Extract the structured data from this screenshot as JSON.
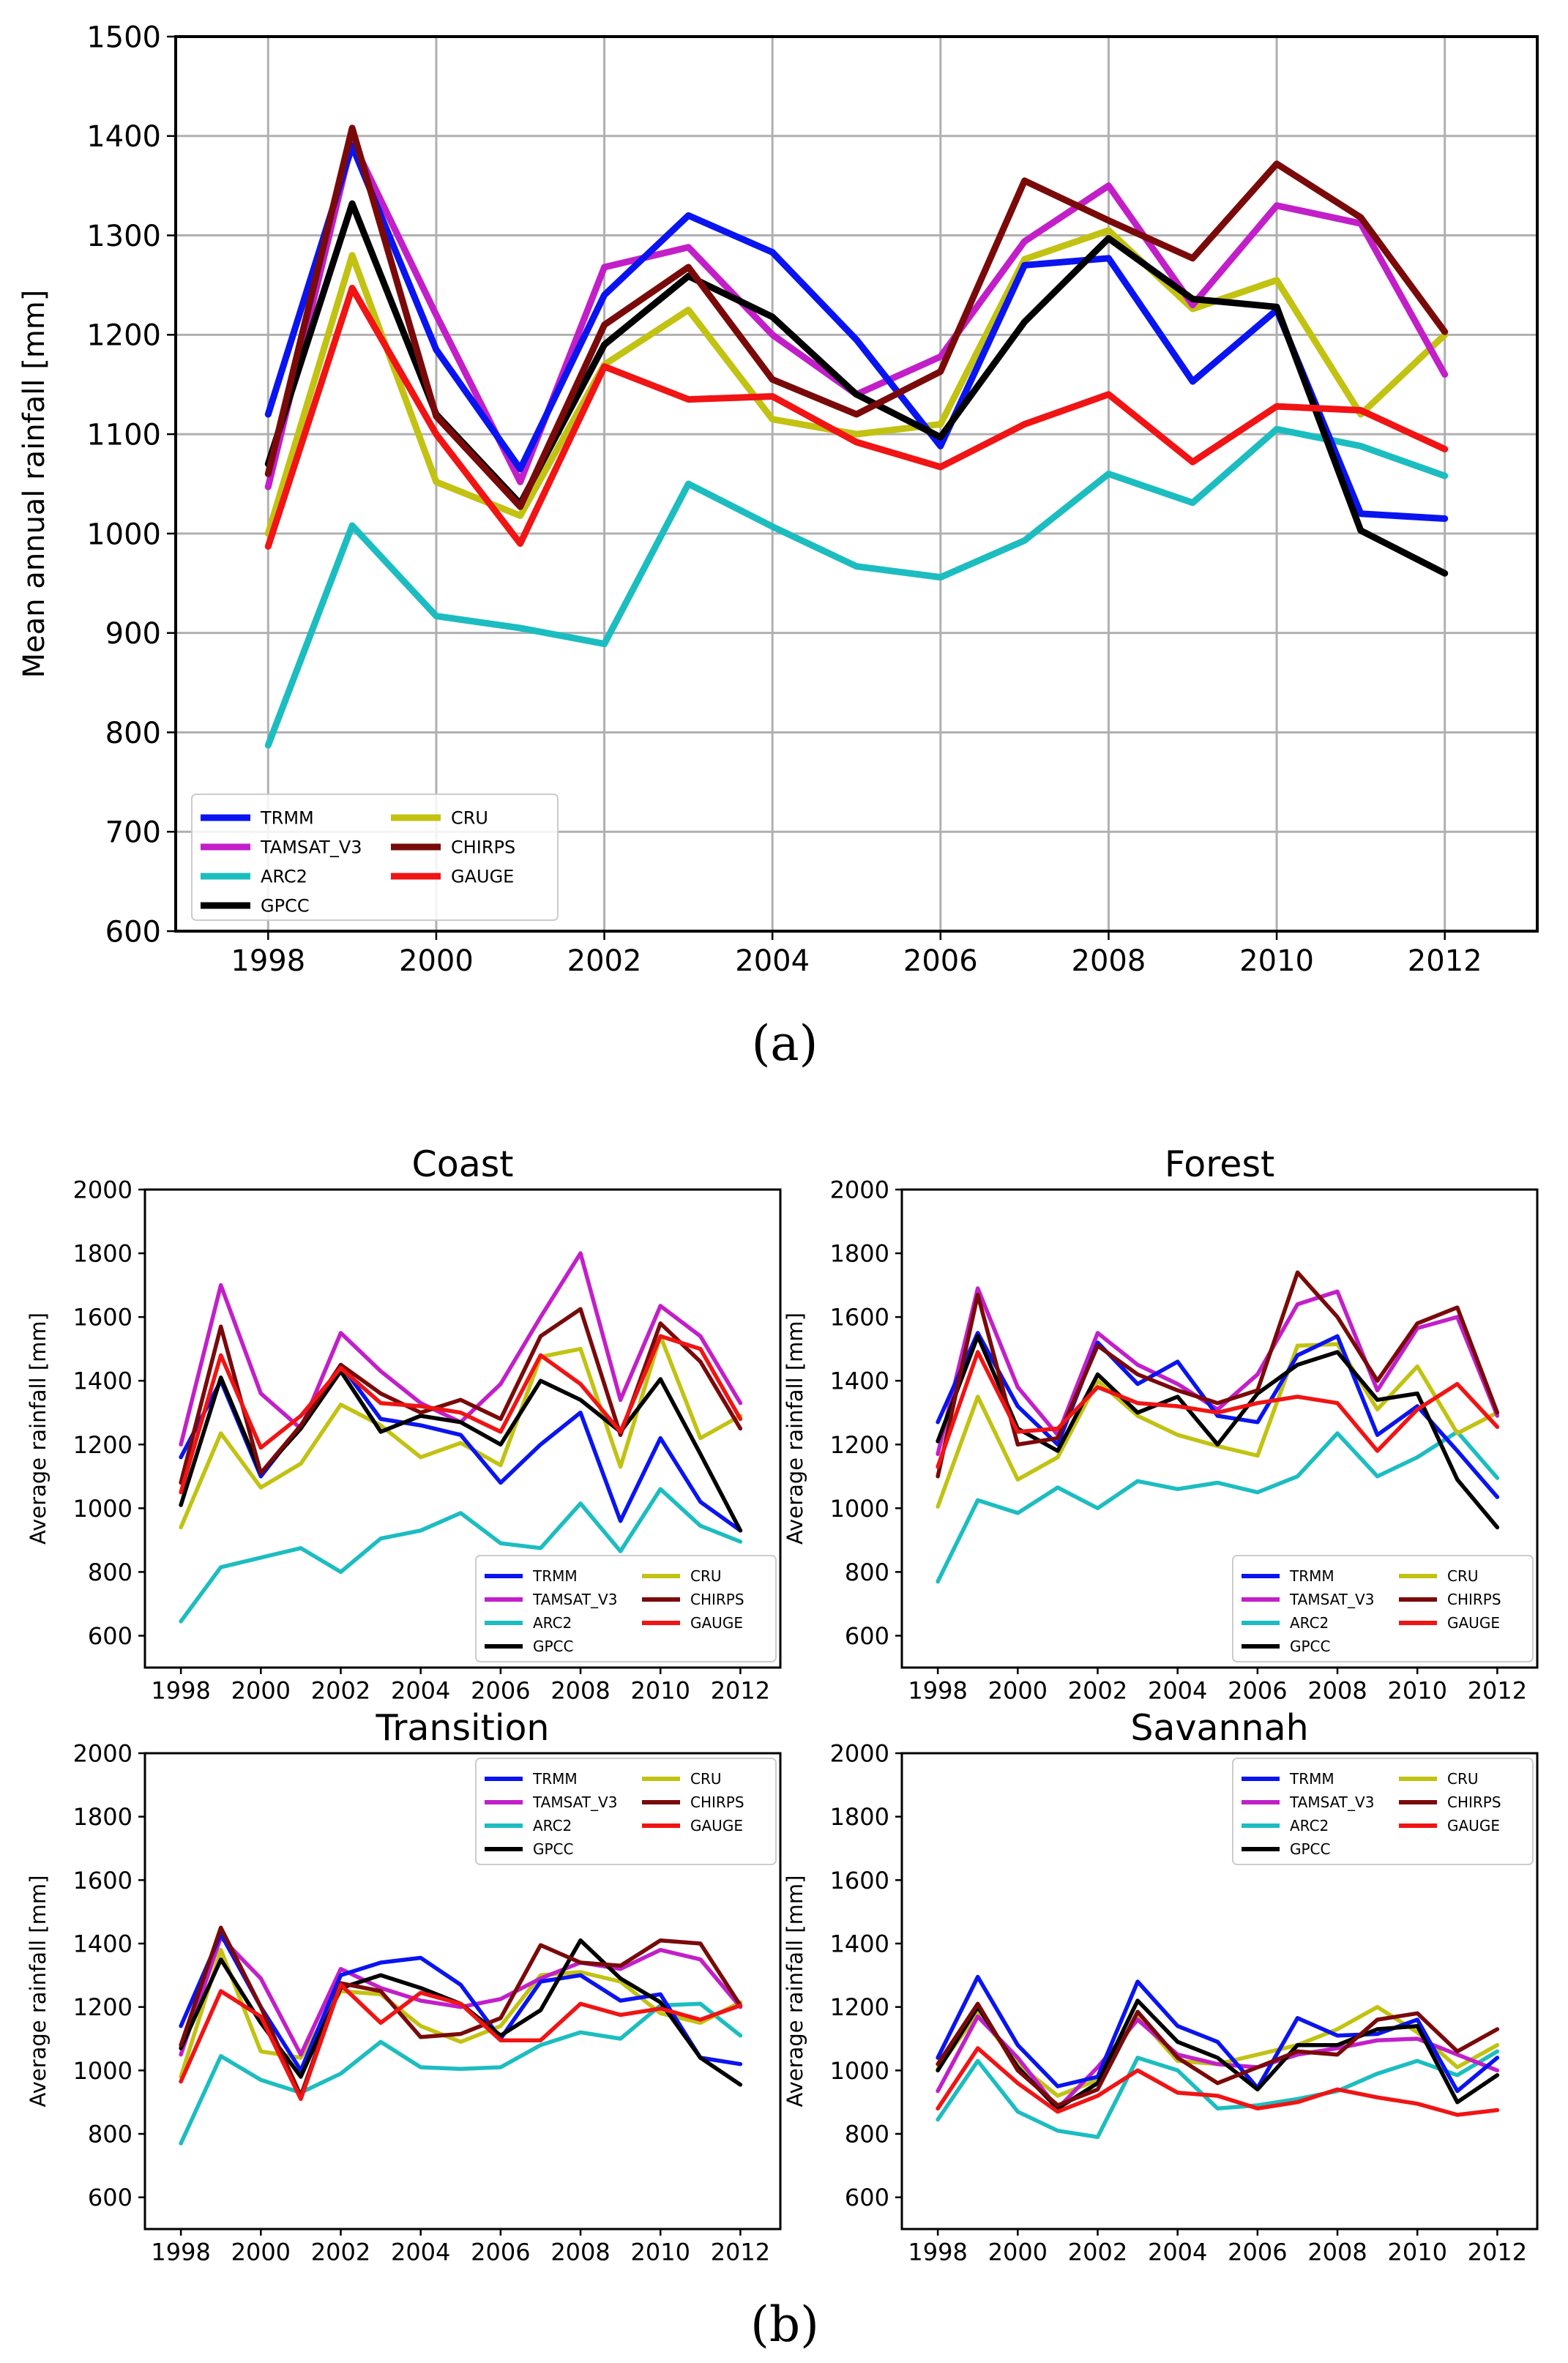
{
  "years": [
    "1998",
    "1999",
    "2000",
    "2001",
    "2002",
    "2003",
    "2004",
    "2005",
    "2006",
    "2007",
    "2008",
    "2009",
    "2010",
    "2011",
    "2012"
  ],
  "colors": {
    "TRMM": "#0a14f0",
    "TAMSAT_V3": "#c21fc9",
    "ARC2": "#1cbdc0",
    "GPCC": "#000000",
    "CRU": "#c2c212",
    "CHIRPS": "#7a0a0a",
    "GAUGE": "#f01414"
  },
  "captions": {
    "a": "(a)",
    "b": "(b)"
  },
  "chart_data": [
    {
      "type": "line",
      "title": "",
      "xlabel": "",
      "ylabel": "Mean annual rainfall [mm]",
      "ylim": [
        600,
        1500
      ],
      "yticks": [
        "600",
        "700",
        "800",
        "900",
        "1000",
        "1100",
        "1200",
        "1300",
        "1400",
        "1500"
      ],
      "xticks": [
        "1998",
        "2000",
        "2002",
        "2004",
        "2006",
        "2008",
        "2010",
        "2012"
      ],
      "xlim": [
        1996.9,
        2013.1
      ],
      "grid": true,
      "legend": "lower-left",
      "series": [
        {
          "name": "TRMM",
          "values": [
            1120,
            1390,
            1185,
            1065,
            1240,
            1320,
            1283,
            1195,
            1088,
            1270,
            1277,
            1153,
            1225,
            1020,
            1015
          ]
        },
        {
          "name": "TAMSAT_V3",
          "values": [
            1047,
            1395,
            1220,
            1052,
            1268,
            1288,
            1200,
            1140,
            1178,
            1294,
            1350,
            1230,
            1330,
            1312,
            1160
          ]
        },
        {
          "name": "ARC2",
          "values": [
            787,
            1008,
            917,
            905,
            889,
            1050,
            1007,
            967,
            956,
            993,
            1060,
            1031,
            1105,
            1088,
            1058
          ]
        },
        {
          "name": "GPCC",
          "values": [
            1070,
            1332,
            1120,
            1030,
            1190,
            1259,
            1218,
            1140,
            1097,
            1213,
            1297,
            1236,
            1228,
            1003,
            960
          ]
        },
        {
          "name": "CRU",
          "values": [
            1000,
            1280,
            1052,
            1018,
            1170,
            1225,
            1115,
            1100,
            1110,
            1276,
            1305,
            1226,
            1255,
            1120,
            1200
          ]
        },
        {
          "name": "CHIRPS",
          "values": [
            1060,
            1408,
            1118,
            1027,
            1210,
            1268,
            1155,
            1120,
            1163,
            1355,
            1315,
            1277,
            1372,
            1318,
            1203
          ]
        },
        {
          "name": "GAUGE",
          "values": [
            987,
            1247,
            1100,
            990,
            1168,
            1135,
            1138,
            1092,
            1067,
            1110,
            1140,
            1072,
            1128,
            1124,
            1085
          ]
        }
      ]
    },
    {
      "type": "line",
      "title": "Coast",
      "xlabel": "",
      "ylabel": "Average rainfall [mm]",
      "ylim": [
        500,
        2000
      ],
      "yticks": [
        "600",
        "800",
        "1000",
        "1200",
        "1400",
        "1600",
        "1800",
        "2000"
      ],
      "xticks": [
        "1998",
        "2000",
        "2002",
        "2004",
        "2006",
        "2008",
        "2010",
        "2012"
      ],
      "xlim": [
        1997.1,
        2013.0
      ],
      "grid": false,
      "legend": "lower-right",
      "series": [
        {
          "name": "TRMM",
          "values": [
            1160,
            1400,
            1100,
            1260,
            1450,
            1280,
            1260,
            1230,
            1080,
            1200,
            1300,
            960,
            1220,
            1020,
            930
          ]
        },
        {
          "name": "TAMSAT_V3",
          "values": [
            1200,
            1700,
            1360,
            1250,
            1550,
            1430,
            1330,
            1270,
            1390,
            1600,
            1800,
            1340,
            1635,
            1540,
            1330
          ]
        },
        {
          "name": "ARC2",
          "values": [
            645,
            815,
            845,
            875,
            800,
            905,
            930,
            985,
            890,
            875,
            1015,
            865,
            1060,
            945,
            895
          ]
        },
        {
          "name": "GPCC",
          "values": [
            1010,
            1410,
            1110,
            1250,
            1430,
            1240,
            1290,
            1270,
            1200,
            1400,
            1340,
            1240,
            1405,
            1170,
            930
          ]
        },
        {
          "name": "CRU",
          "values": [
            940,
            1235,
            1065,
            1140,
            1325,
            1260,
            1160,
            1205,
            1135,
            1475,
            1500,
            1130,
            1540,
            1220,
            1290
          ]
        },
        {
          "name": "CHIRPS",
          "values": [
            1080,
            1570,
            1110,
            1260,
            1450,
            1360,
            1300,
            1340,
            1280,
            1540,
            1625,
            1230,
            1580,
            1460,
            1250
          ]
        },
        {
          "name": "GAUGE",
          "values": [
            1050,
            1480,
            1190,
            1290,
            1440,
            1330,
            1320,
            1300,
            1240,
            1480,
            1390,
            1240,
            1540,
            1500,
            1280
          ]
        }
      ]
    },
    {
      "type": "line",
      "title": "Forest",
      "xlabel": "",
      "ylabel": "Average rainfall [mm]",
      "ylim": [
        500,
        2000
      ],
      "yticks": [
        "600",
        "800",
        "1000",
        "1200",
        "1400",
        "1600",
        "1800",
        "2000"
      ],
      "xticks": [
        "1998",
        "2000",
        "2002",
        "2004",
        "2006",
        "2008",
        "2010",
        "2012"
      ],
      "xlim": [
        1997.1,
        2013.0
      ],
      "grid": false,
      "legend": "lower-right",
      "series": [
        {
          "name": "TRMM",
          "values": [
            1270,
            1550,
            1320,
            1200,
            1520,
            1390,
            1460,
            1290,
            1270,
            1480,
            1540,
            1230,
            1320,
            1180,
            1035
          ]
        },
        {
          "name": "TAMSAT_V3",
          "values": [
            1170,
            1690,
            1380,
            1230,
            1550,
            1450,
            1390,
            1310,
            1420,
            1640,
            1680,
            1370,
            1565,
            1600,
            1290
          ]
        },
        {
          "name": "ARC2",
          "values": [
            770,
            1025,
            985,
            1065,
            1000,
            1085,
            1060,
            1080,
            1050,
            1100,
            1235,
            1100,
            1160,
            1240,
            1095
          ]
        },
        {
          "name": "GPCC",
          "values": [
            1210,
            1540,
            1250,
            1180,
            1420,
            1300,
            1350,
            1200,
            1360,
            1450,
            1490,
            1340,
            1360,
            1090,
            940
          ]
        },
        {
          "name": "CRU",
          "values": [
            1005,
            1350,
            1090,
            1160,
            1400,
            1290,
            1230,
            1195,
            1165,
            1510,
            1515,
            1310,
            1445,
            1235,
            1300
          ]
        },
        {
          "name": "CHIRPS",
          "values": [
            1100,
            1670,
            1200,
            1220,
            1510,
            1420,
            1370,
            1330,
            1370,
            1740,
            1600,
            1400,
            1580,
            1630,
            1300
          ]
        },
        {
          "name": "GAUGE",
          "values": [
            1130,
            1490,
            1240,
            1250,
            1380,
            1330,
            1320,
            1300,
            1330,
            1350,
            1330,
            1180,
            1310,
            1390,
            1255
          ]
        }
      ]
    },
    {
      "type": "line",
      "title": "Transition",
      "xlabel": "",
      "ylabel": "Average rainfall [mm]",
      "ylim": [
        500,
        2000
      ],
      "yticks": [
        "600",
        "800",
        "1000",
        "1200",
        "1400",
        "1600",
        "1800",
        "2000"
      ],
      "xticks": [
        "1998",
        "2000",
        "2002",
        "2004",
        "2006",
        "2008",
        "2010",
        "2012"
      ],
      "xlim": [
        1997.1,
        2013.0
      ],
      "grid": false,
      "legend": "upper-right",
      "series": [
        {
          "name": "TRMM",
          "values": [
            1140,
            1430,
            1200,
            1000,
            1300,
            1340,
            1355,
            1270,
            1100,
            1280,
            1300,
            1220,
            1240,
            1040,
            1020
          ]
        },
        {
          "name": "TAMSAT_V3",
          "values": [
            1050,
            1420,
            1290,
            1050,
            1320,
            1260,
            1220,
            1200,
            1225,
            1290,
            1340,
            1320,
            1380,
            1350,
            1200
          ]
        },
        {
          "name": "ARC2",
          "values": [
            770,
            1045,
            970,
            930,
            990,
            1090,
            1010,
            1005,
            1010,
            1080,
            1120,
            1100,
            1205,
            1210,
            1110
          ]
        },
        {
          "name": "GPCC",
          "values": [
            1070,
            1350,
            1150,
            980,
            1260,
            1300,
            1260,
            1210,
            1110,
            1190,
            1410,
            1290,
            1215,
            1040,
            955
          ]
        },
        {
          "name": "CRU",
          "values": [
            980,
            1380,
            1060,
            1040,
            1250,
            1240,
            1140,
            1090,
            1140,
            1300,
            1310,
            1280,
            1180,
            1150,
            1215
          ]
        },
        {
          "name": "CHIRPS",
          "values": [
            1080,
            1450,
            1200,
            920,
            1275,
            1250,
            1105,
            1115,
            1165,
            1395,
            1340,
            1330,
            1410,
            1400,
            1205
          ]
        },
        {
          "name": "GAUGE",
          "values": [
            965,
            1250,
            1170,
            910,
            1270,
            1150,
            1245,
            1210,
            1095,
            1095,
            1210,
            1175,
            1195,
            1160,
            1205
          ]
        }
      ]
    },
    {
      "type": "line",
      "title": "Savannah",
      "xlabel": "",
      "ylabel": "Average rainfall [mm]",
      "ylim": [
        500,
        2000
      ],
      "yticks": [
        "600",
        "800",
        "1000",
        "1200",
        "1400",
        "1600",
        "1800",
        "2000"
      ],
      "xticks": [
        "1998",
        "2000",
        "2002",
        "2004",
        "2006",
        "2008",
        "2010",
        "2012"
      ],
      "xlim": [
        1997.1,
        2013.0
      ],
      "grid": false,
      "legend": "upper-right",
      "series": [
        {
          "name": "TRMM",
          "values": [
            1040,
            1295,
            1080,
            950,
            980,
            1280,
            1140,
            1090,
            945,
            1165,
            1110,
            1115,
            1160,
            935,
            1040
          ]
        },
        {
          "name": "TAMSAT_V3",
          "values": [
            935,
            1170,
            1040,
            880,
            1010,
            1160,
            1050,
            1020,
            1010,
            1050,
            1070,
            1095,
            1100,
            1050,
            1000
          ]
        },
        {
          "name": "ARC2",
          "values": [
            845,
            1030,
            870,
            810,
            790,
            1040,
            1000,
            880,
            890,
            910,
            935,
            990,
            1030,
            985,
            1060
          ]
        },
        {
          "name": "GPCC",
          "values": [
            1000,
            1200,
            1010,
            880,
            960,
            1220,
            1090,
            1040,
            940,
            1080,
            1080,
            1130,
            1140,
            900,
            985
          ]
        },
        {
          "name": "CRU",
          "values": [
            1005,
            1180,
            1020,
            920,
            970,
            1170,
            1030,
            1020,
            1050,
            1080,
            1130,
            1200,
            1120,
            1010,
            1080
          ]
        },
        {
          "name": "CHIRPS",
          "values": [
            1020,
            1210,
            1000,
            890,
            940,
            1185,
            1040,
            960,
            1010,
            1060,
            1050,
            1160,
            1180,
            1060,
            1130
          ]
        },
        {
          "name": "GAUGE",
          "values": [
            880,
            1070,
            960,
            870,
            920,
            1000,
            930,
            920,
            880,
            900,
            940,
            915,
            895,
            860,
            875
          ]
        }
      ]
    }
  ]
}
